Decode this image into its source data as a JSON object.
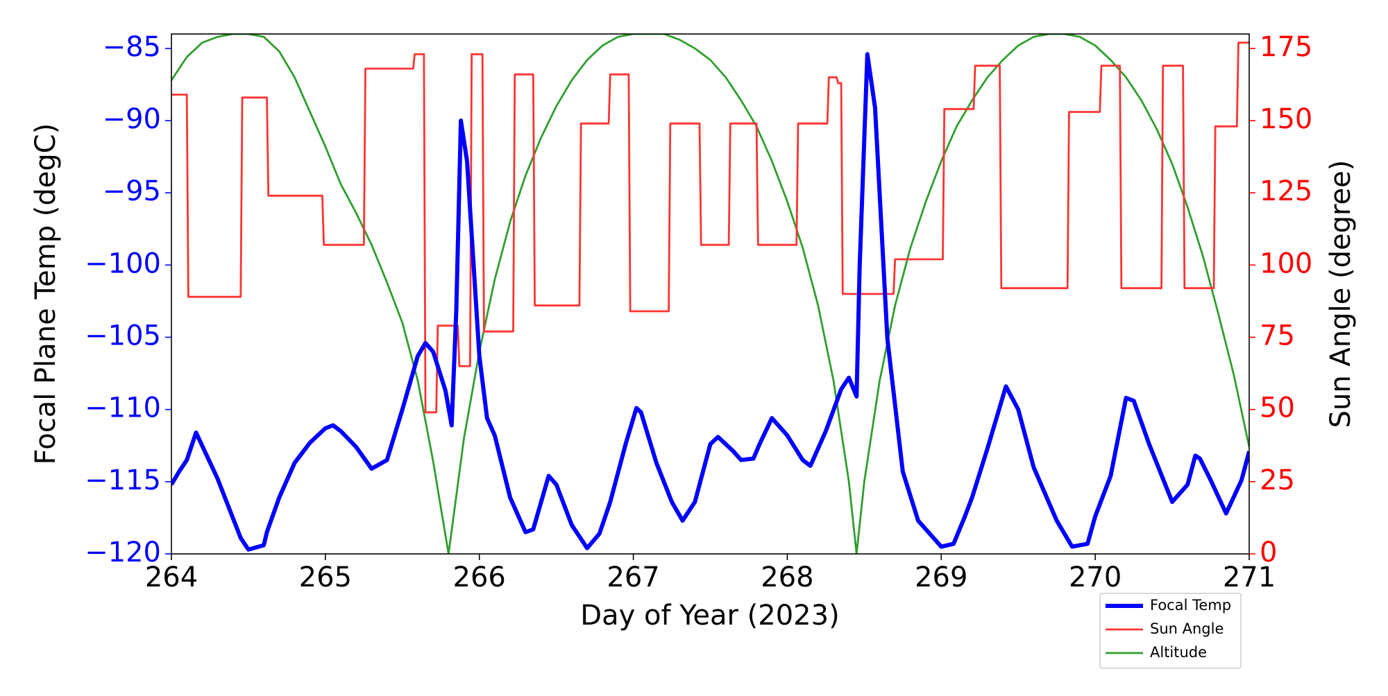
{
  "chart_data": {
    "type": "line",
    "xlabel": "Day of Year (2023)",
    "ylabel": "Focal Plane Temp (degC)",
    "y2label": "Sun Angle (degree)",
    "xlim": [
      264,
      271
    ],
    "xticks": [
      264,
      265,
      266,
      267,
      268,
      269,
      270,
      271
    ],
    "ylim": [
      -120,
      -84
    ],
    "yticks": [
      {
        "value": -120,
        "label": "−120"
      },
      {
        "value": -115,
        "label": "−115"
      },
      {
        "value": -110,
        "label": "−110"
      },
      {
        "value": -105,
        "label": "−105"
      },
      {
        "value": -100,
        "label": "−100"
      },
      {
        "value": -95,
        "label": "−95"
      },
      {
        "value": -90,
        "label": "−90"
      },
      {
        "value": -85,
        "label": "−85"
      }
    ],
    "y_color": "#0000ff",
    "y2lim": [
      0,
      180
    ],
    "y2ticks": [
      0,
      25,
      50,
      75,
      100,
      125,
      150,
      175
    ],
    "y2_color": "#ff0000",
    "legend": "below right",
    "series": [
      {
        "name": "Focal Temp",
        "color": "#0000ff",
        "linewidth": 6,
        "axis": "y",
        "x": [
          264.0,
          264.05,
          264.1,
          264.16,
          264.3,
          264.45,
          264.5,
          264.6,
          264.62,
          264.7,
          264.8,
          264.9,
          265.0,
          265.05,
          265.1,
          265.2,
          265.3,
          265.4,
          265.5,
          265.6,
          265.65,
          265.7,
          265.78,
          265.82,
          265.85,
          265.88,
          265.92,
          266.0,
          266.05,
          266.1,
          266.2,
          266.3,
          266.35,
          266.45,
          266.5,
          266.6,
          266.7,
          266.78,
          266.85,
          266.95,
          267.02,
          267.05,
          267.15,
          267.25,
          267.32,
          267.4,
          267.5,
          267.55,
          267.65,
          267.7,
          267.78,
          267.82,
          267.9,
          268.0,
          268.1,
          268.15,
          268.25,
          268.35,
          268.4,
          268.45,
          268.47,
          268.52,
          268.57,
          268.65,
          268.75,
          268.85,
          269.0,
          269.08,
          269.15,
          269.2,
          269.3,
          269.42,
          269.5,
          269.6,
          269.75,
          269.85,
          269.95,
          270.0,
          270.1,
          270.2,
          270.25,
          270.35,
          270.5,
          270.6,
          270.65,
          270.68,
          270.75,
          270.85,
          270.95,
          271.0
        ],
        "values": [
          -115.2,
          -114.3,
          -113.5,
          -111.6,
          -114.8,
          -118.9,
          -119.7,
          -119.4,
          -118.5,
          -116.1,
          -113.7,
          -112.3,
          -111.3,
          -111.1,
          -111.5,
          -112.6,
          -114.1,
          -113.5,
          -110.0,
          -106.3,
          -105.4,
          -106.0,
          -108.7,
          -111.1,
          -103.2,
          -90.0,
          -92.8,
          -106.3,
          -110.6,
          -111.8,
          -116.1,
          -118.5,
          -118.3,
          -114.6,
          -115.2,
          -118.0,
          -119.6,
          -118.6,
          -116.4,
          -112.4,
          -109.9,
          -110.2,
          -113.7,
          -116.4,
          -117.7,
          -116.4,
          -112.4,
          -111.9,
          -112.9,
          -113.5,
          -113.4,
          -112.4,
          -110.6,
          -111.8,
          -113.5,
          -113.9,
          -111.5,
          -108.6,
          -107.8,
          -109.1,
          -100.1,
          -85.4,
          -89.1,
          -105.1,
          -114.3,
          -117.7,
          -119.5,
          -119.3,
          -117.5,
          -116.1,
          -112.7,
          -108.4,
          -110.0,
          -114.0,
          -117.7,
          -119.5,
          -119.3,
          -117.4,
          -114.6,
          -109.2,
          -109.4,
          -112.4,
          -116.4,
          -115.2,
          -113.2,
          -113.4,
          -114.9,
          -117.2,
          -114.9,
          -112.9
        ]
      },
      {
        "name": "Sun Angle",
        "color": "#ff3333",
        "linewidth": 2.8,
        "axis": "y2",
        "x": [
          264,
          264.1,
          264.11,
          264.45,
          264.46,
          264.62,
          264.63,
          264.98,
          264.99,
          265.25,
          265.26,
          265.57,
          265.58,
          265.64,
          265.65,
          265.72,
          265.73,
          265.86,
          265.87,
          265.94,
          265.95,
          266.02,
          266.03,
          266.22,
          266.23,
          266.35,
          266.36,
          266.65,
          266.66,
          266.84,
          266.85,
          266.97,
          266.98,
          267.23,
          267.24,
          267.43,
          267.44,
          267.62,
          267.63,
          267.8,
          267.81,
          268.06,
          268.07,
          268.26,
          268.27,
          268.32,
          268.33,
          268.35,
          268.36,
          268.69,
          268.7,
          269.01,
          269.02,
          269.21,
          269.22,
          269.38,
          269.39,
          269.82,
          269.83,
          270.03,
          270.04,
          270.16,
          270.17,
          270.43,
          270.44,
          270.57,
          270.58,
          270.77,
          270.78,
          270.92,
          270.93,
          271
        ],
        "values": [
          159,
          159,
          89,
          89,
          158,
          158,
          124,
          124,
          107,
          107,
          168,
          168,
          173,
          173,
          49,
          49,
          79,
          79,
          65,
          65,
          173,
          173,
          77,
          77,
          166,
          166,
          86,
          86,
          149,
          149,
          166,
          166,
          84,
          84,
          149,
          149,
          107,
          107,
          149,
          149,
          107,
          107,
          149,
          149,
          165,
          165,
          163,
          163,
          90,
          90,
          102,
          102,
          154,
          154,
          169,
          169,
          92,
          92,
          153,
          153,
          169,
          169,
          92,
          92,
          169,
          169,
          92,
          92,
          148,
          148,
          177,
          177
        ]
      },
      {
        "name": "Altitude",
        "color": "#2e9e2e",
        "linewidth": 2.8,
        "axis": "y2",
        "x": [
          264.0,
          264.1,
          264.2,
          264.3,
          264.4,
          264.5,
          264.6,
          264.7,
          264.8,
          264.9,
          265.0,
          265.1,
          265.2,
          265.3,
          265.4,
          265.5,
          265.6,
          265.7,
          265.8,
          265.9,
          266.0,
          266.1,
          266.2,
          266.3,
          266.4,
          266.5,
          266.6,
          266.7,
          266.8,
          266.9,
          267.0,
          267.1,
          267.2,
          267.3,
          267.4,
          267.5,
          267.6,
          267.7,
          267.8,
          267.9,
          268.0,
          268.1,
          268.2,
          268.3,
          268.4,
          268.45,
          268.5,
          268.6,
          268.7,
          268.8,
          268.9,
          269.0,
          269.1,
          269.2,
          269.3,
          269.4,
          269.5,
          269.6,
          269.7,
          269.8,
          269.9,
          270.0,
          270.1,
          270.2,
          270.3,
          270.4,
          270.5,
          270.6,
          270.7,
          270.8,
          270.9,
          271.0
        ],
        "values": [
          164,
          172,
          177,
          179,
          180,
          180,
          179,
          174,
          165,
          153,
          141,
          128,
          118,
          107,
          94,
          80,
          60,
          32,
          0,
          40,
          70,
          95,
          115,
          131,
          144,
          155,
          164,
          171,
          176,
          179,
          180,
          180,
          180,
          178,
          175,
          171,
          165,
          157,
          148,
          136,
          122,
          106,
          86,
          60,
          25,
          0,
          25,
          60,
          86,
          106,
          122,
          136,
          148,
          157,
          165,
          171,
          176,
          179,
          180,
          180,
          179,
          176,
          171,
          165,
          157,
          147,
          135,
          120,
          103,
          83,
          62,
          37
        ]
      }
    ]
  }
}
